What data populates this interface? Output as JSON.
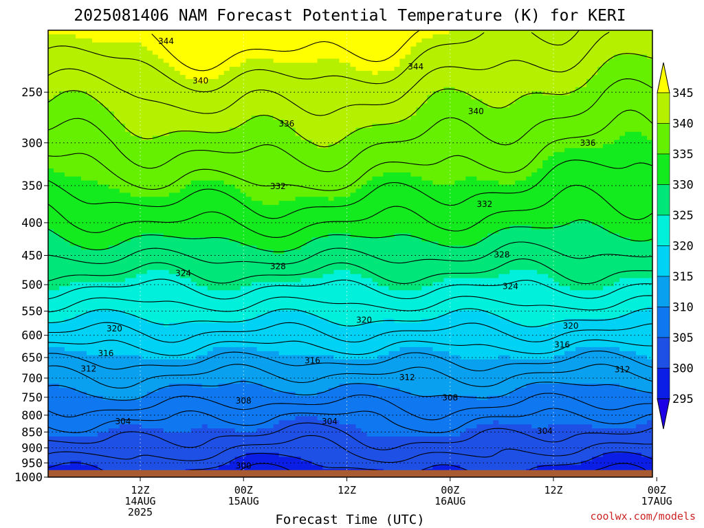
{
  "chart_data": {
    "type": "heatmap",
    "title": "2025081406 NAM Forecast Potential Temperature (K) for KERI",
    "xlabel": "Forecast Time (UTC)",
    "ylabel": "",
    "credit": "coolwx.com/models",
    "y_scale": "log",
    "y_inverted": true,
    "ylim": [
      1000,
      200
    ],
    "y_ticks": [
      250,
      300,
      350,
      400,
      450,
      500,
      550,
      600,
      650,
      700,
      750,
      800,
      850,
      900,
      950,
      1000
    ],
    "x_range_hours": [
      -4.7,
      65.5
    ],
    "x_ticks": [
      {
        "hour": 6,
        "line1": "12Z",
        "line2": "14AUG",
        "line3": "2025"
      },
      {
        "hour": 18,
        "line1": "00Z",
        "line2": "15AUG",
        "line3": ""
      },
      {
        "hour": 30,
        "line1": "12Z",
        "line2": "",
        "line3": ""
      },
      {
        "hour": 42,
        "line1": "00Z",
        "line2": "16AUG",
        "line3": ""
      },
      {
        "hour": 54,
        "line1": "12Z",
        "line2": "",
        "line3": ""
      },
      {
        "hour": 66,
        "line1": "00Z",
        "line2": "17AUG",
        "line3": ""
      },
      {
        "hour": 78,
        "line1": "12Z",
        "line2": "",
        "line3": ""
      }
    ],
    "grid": true,
    "surface_pressure": 975,
    "colorbar": {
      "levels": [
        295,
        300,
        305,
        310,
        315,
        320,
        325,
        330,
        335,
        340,
        345
      ],
      "labels": [
        "295",
        "300",
        "305",
        "310",
        "315",
        "320",
        "325",
        "330",
        "335",
        "340",
        "345"
      ],
      "colors": [
        "#1e00e6",
        "#0a1ee6",
        "#1e50e6",
        "#0f78f0",
        "#0aa0f0",
        "#00d2f5",
        "#00f0dc",
        "#00e678",
        "#14eb1e",
        "#64f000",
        "#b4f000",
        "#ffff00"
      ]
    },
    "contour_interval": 2,
    "contour_labels": [
      {
        "value": "344",
        "hour": 9,
        "p": 208
      },
      {
        "value": "344",
        "hour": 38,
        "p": 228
      },
      {
        "value": "340",
        "hour": 13,
        "p": 240
      },
      {
        "value": "340",
        "hour": 45,
        "p": 268
      },
      {
        "value": "336",
        "hour": 23,
        "p": 280
      },
      {
        "value": "336",
        "hour": 58,
        "p": 300
      },
      {
        "value": "336",
        "hour": 76,
        "p": 318
      },
      {
        "value": "332",
        "hour": 22,
        "p": 351
      },
      {
        "value": "332",
        "hour": 46,
        "p": 374
      },
      {
        "value": "332",
        "hour": 69,
        "p": 398
      },
      {
        "value": "328",
        "hour": 22,
        "p": 468
      },
      {
        "value": "328",
        "hour": 48,
        "p": 449
      },
      {
        "value": "328",
        "hour": 70,
        "p": 481
      },
      {
        "value": "324",
        "hour": 11,
        "p": 480
      },
      {
        "value": "324",
        "hour": 49,
        "p": 503
      },
      {
        "value": "324",
        "hour": 82,
        "p": 497
      },
      {
        "value": "320",
        "hour": 3,
        "p": 586
      },
      {
        "value": "320",
        "hour": 32,
        "p": 568
      },
      {
        "value": "320",
        "hour": 56,
        "p": 580
      },
      {
        "value": "320",
        "hour": 85,
        "p": 562
      },
      {
        "value": "316",
        "hour": 2,
        "p": 640
      },
      {
        "value": "316",
        "hour": 26,
        "p": 657
      },
      {
        "value": "316",
        "hour": 55,
        "p": 621
      },
      {
        "value": "316",
        "hour": 87,
        "p": 629
      },
      {
        "value": "312",
        "hour": 0,
        "p": 677
      },
      {
        "value": "312",
        "hour": 37,
        "p": 698
      },
      {
        "value": "312",
        "hour": 62,
        "p": 679
      },
      {
        "value": "308",
        "hour": 18,
        "p": 760
      },
      {
        "value": "308",
        "hour": 42,
        "p": 751
      },
      {
        "value": "308",
        "hour": 68,
        "p": 787
      },
      {
        "value": "304",
        "hour": 4,
        "p": 818
      },
      {
        "value": "304",
        "hour": 28,
        "p": 818
      },
      {
        "value": "304",
        "hour": 53,
        "p": 847
      },
      {
        "value": "304",
        "hour": 70,
        "p": 907
      },
      {
        "value": "300",
        "hour": 18,
        "p": 960
      }
    ]
  }
}
